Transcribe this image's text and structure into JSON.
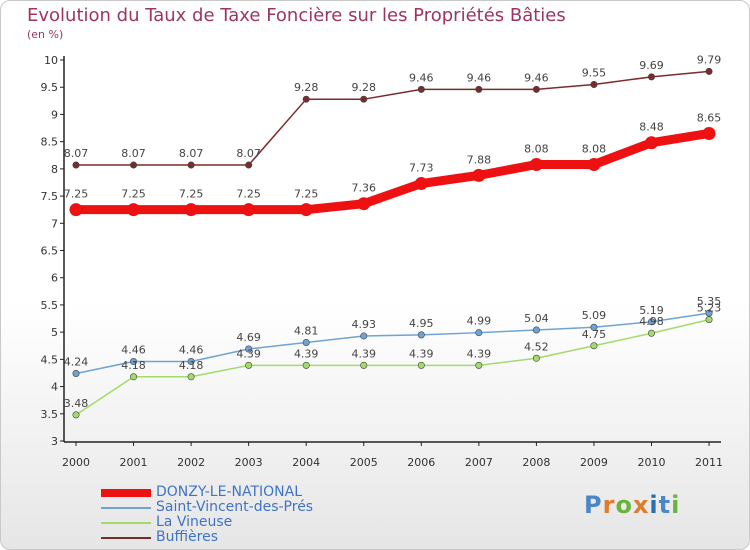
{
  "title": "Evolution du Taux de Taxe Foncière sur les Propriétés Bâties",
  "subtitle": "(en %)",
  "logo": {
    "text": "Proxiti",
    "colors": [
      "#4a86c8",
      "#e07b2a",
      "#6cb33e",
      "#e07b2a",
      "#2a6fb0",
      "#4a86c8",
      "#6cb33e"
    ]
  },
  "chart_data": {
    "type": "line",
    "title": "Evolution du Taux de Taxe Foncière sur les Propriétés Bâties",
    "ylabel": "(en %)",
    "xlabel": "",
    "ylim": [
      3,
      10
    ],
    "yticks": [
      "3",
      "3.5",
      "4",
      "4.5",
      "5",
      "5.5",
      "6",
      "6.5",
      "7",
      "7.5",
      "8",
      "8.5",
      "9",
      "9.5",
      "10"
    ],
    "categories": [
      "2000",
      "2001",
      "2002",
      "2003",
      "2004",
      "2005",
      "2006",
      "2007",
      "2008",
      "2009",
      "2010",
      "2011"
    ],
    "grid": false,
    "legend_position": "bottom-left",
    "series": [
      {
        "name": "Buffières",
        "color": "#7a2c2c",
        "values": [
          8.07,
          8.07,
          8.07,
          8.07,
          9.28,
          9.28,
          9.46,
          9.46,
          9.46,
          9.55,
          9.69,
          9.79
        ],
        "labels": [
          "8.07",
          "8.07",
          "8.07",
          "8.07",
          "9.28",
          "9.28",
          "9.46",
          "9.46",
          "9.46",
          "9.55",
          "9.69",
          "9.79"
        ]
      },
      {
        "name": "DONZY-LE-NATIONAL",
        "color": "#ee1111",
        "values": [
          7.25,
          7.25,
          7.25,
          7.25,
          7.25,
          7.36,
          7.73,
          7.88,
          8.08,
          8.08,
          8.48,
          8.65
        ],
        "labels": [
          "7.25",
          "7.25",
          "7.25",
          "7.25",
          "7.25",
          "7.36",
          "7.73",
          "7.88",
          "8.08",
          "8.08",
          "8.48",
          "8.65"
        ]
      },
      {
        "name": "Saint-Vincent-des-Prés",
        "color": "#6fa3d6",
        "values": [
          4.24,
          4.46,
          4.46,
          4.69,
          4.81,
          4.93,
          4.95,
          4.99,
          5.04,
          5.09,
          5.19,
          5.35
        ],
        "labels": [
          "4.24",
          "4.46",
          "4.46",
          "4.69",
          "4.81",
          "4.93",
          "4.95",
          "4.99",
          "5.04",
          "5.09",
          "5.19",
          "5.35"
        ]
      },
      {
        "name": "La Vineuse",
        "color": "#a3db6a",
        "values": [
          3.48,
          4.18,
          4.18,
          4.39,
          4.39,
          4.39,
          4.39,
          4.39,
          4.52,
          4.75,
          4.98,
          5.23
        ],
        "labels": [
          "3.48",
          "4.18",
          "4.18",
          "4.39",
          "4.39",
          "4.39",
          "4.39",
          "4.39",
          "4.52",
          "4.75",
          "4.98",
          "5.23"
        ]
      }
    ],
    "legend": [
      {
        "name": "DONZY-LE-NATIONAL",
        "color": "#ee1111"
      },
      {
        "name": "Saint-Vincent-des-Prés",
        "color": "#6fa3d6"
      },
      {
        "name": "La Vineuse",
        "color": "#a3db6a"
      },
      {
        "name": "Buffières",
        "color": "#7a2c2c"
      }
    ]
  }
}
